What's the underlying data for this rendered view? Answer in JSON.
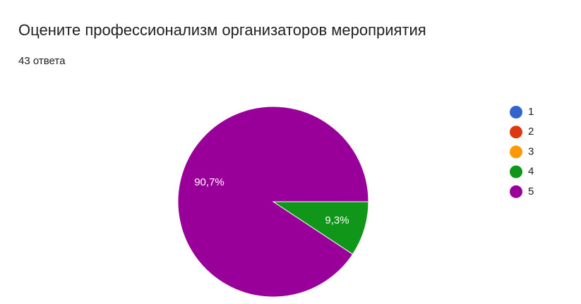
{
  "chart_data": {
    "type": "pie",
    "title": "Оцените профессионализм организаторов мероприятия",
    "subtitle": "43 ответа",
    "categories": [
      "1",
      "2",
      "3",
      "4",
      "5"
    ],
    "values": [
      0,
      0,
      0,
      9.3,
      90.7
    ],
    "value_labels": [
      null,
      null,
      null,
      "9,3%",
      "90,7%"
    ],
    "colors": [
      "#3366cc",
      "#dc3912",
      "#ff9900",
      "#109618",
      "#990099"
    ],
    "legend": "right"
  }
}
